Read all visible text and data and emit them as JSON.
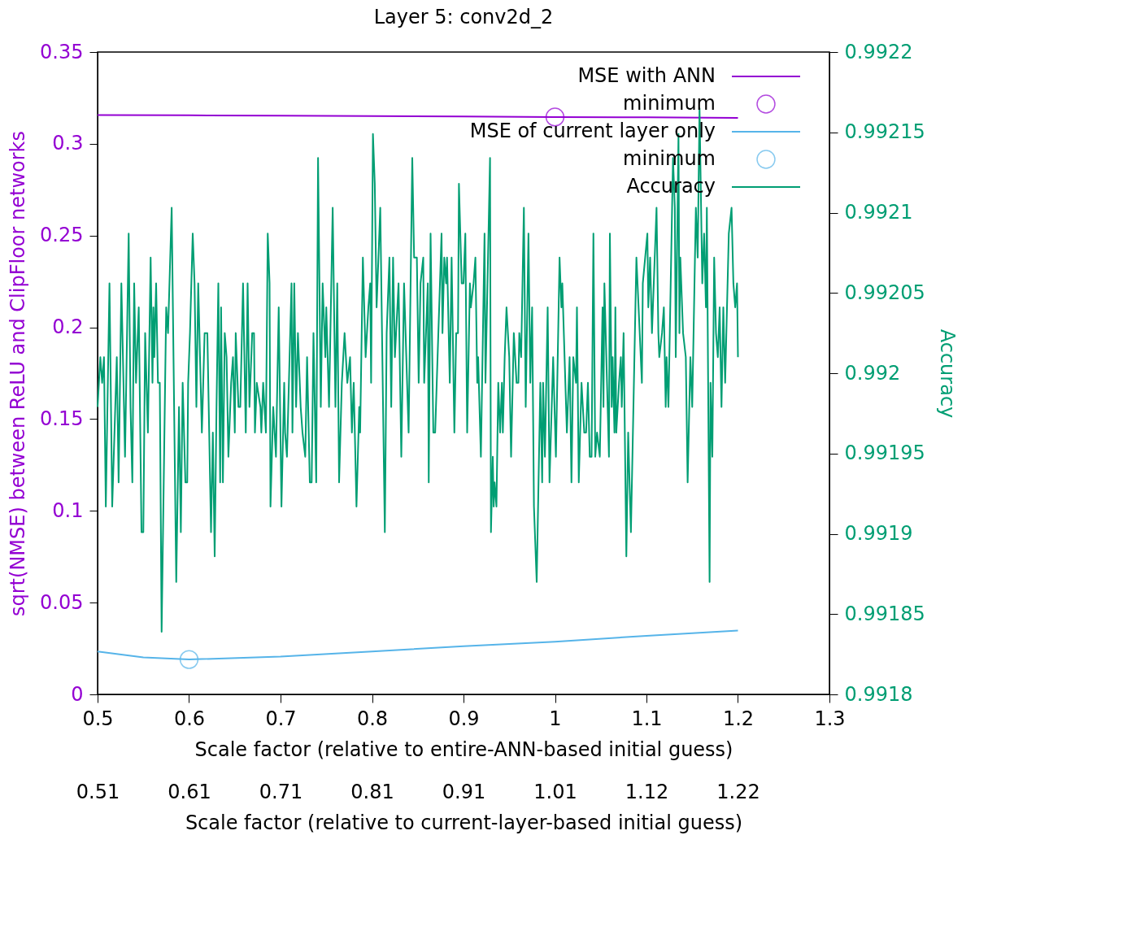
{
  "chart_data": {
    "type": "line",
    "title": "Layer 5: conv2d_2",
    "xlabel": "Scale factor (relative to entire-ANN-based initial guess)",
    "x2label": "Scale factor (relative to current-layer-based initial guess)",
    "ylabel": "sqrt(NMSE) between ReLU and ClipFloor networks",
    "y2label": "Accuracy",
    "xlim": [
      0.5,
      1.3
    ],
    "xticks": [
      0.5,
      0.6,
      0.7,
      0.8,
      0.9,
      1,
      1.1,
      1.2,
      1.3
    ],
    "x2lim": [
      0.5075,
      1.3195
    ],
    "x2ticks": [
      {
        "value": 0.5075,
        "label": "0.51"
      },
      {
        "value": 0.609,
        "label": "0.61"
      },
      {
        "value": 0.7105,
        "label": "0.71"
      },
      {
        "value": 0.812,
        "label": "0.81"
      },
      {
        "value": 0.9135,
        "label": "0.91"
      },
      {
        "value": 1.015,
        "label": "1.01"
      },
      {
        "value": 1.1165,
        "label": "1.12"
      },
      {
        "value": 1.218,
        "label": "1.22"
      }
    ],
    "ylim": [
      0,
      0.35
    ],
    "yticks": [
      0,
      0.05,
      0.1,
      0.15,
      0.2,
      0.25,
      0.3,
      0.35
    ],
    "y2lim": [
      0.9918,
      0.9922
    ],
    "y2ticks": [
      0.9918,
      0.99185,
      0.9919,
      0.99195,
      0.992,
      0.99205,
      0.9921,
      0.99215,
      0.9922
    ],
    "legend": "top right",
    "grid": false,
    "series": [
      {
        "name": "MSE with ANN",
        "color": "#9400d3",
        "x": [
          0.5,
          0.6,
          0.7,
          0.8,
          0.9,
          1.0,
          1.1,
          1.2
        ],
        "values": [
          0.3157,
          0.3155,
          0.3153,
          0.3151,
          0.3149,
          0.3146,
          0.3144,
          0.3141
        ]
      },
      {
        "name": "minimum",
        "type": "scatter",
        "marker": "circle",
        "color": "#9400d3",
        "x": [
          1.0
        ],
        "values": [
          0.3146
        ]
      },
      {
        "name": "MSE of current layer only",
        "color": "#56b4e9",
        "x": [
          0.5,
          0.55,
          0.6,
          0.7,
          0.8,
          0.9,
          1.0,
          1.1,
          1.2
        ],
        "values": [
          0.0234,
          0.0202,
          0.019,
          0.0206,
          0.0234,
          0.0263,
          0.0287,
          0.0319,
          0.0348
        ]
      },
      {
        "name": "minimum",
        "type": "scatter",
        "marker": "circle",
        "color": "#56b4e9",
        "x": [
          0.6
        ],
        "values": [
          0.019
        ]
      },
      {
        "name": "Accuracy",
        "axis": "y2",
        "color": "#009e73",
        "x": [
          0.5,
          0.503,
          0.505,
          0.507,
          0.509,
          0.513,
          0.516,
          0.521,
          0.523,
          0.526,
          0.53,
          0.534,
          0.536,
          0.538,
          0.54,
          0.542,
          0.545,
          0.548,
          0.55,
          0.552,
          0.555,
          0.558,
          0.56,
          0.561,
          0.562,
          0.564,
          0.566,
          0.568,
          0.57,
          0.575,
          0.577,
          0.581,
          0.586,
          0.589,
          0.591,
          0.593,
          0.596,
          0.598,
          0.599,
          0.601,
          0.604,
          0.606,
          0.608,
          0.61,
          0.614,
          0.617,
          0.62,
          0.622,
          0.624,
          0.626,
          0.628,
          0.63,
          0.632,
          0.634,
          0.635,
          0.637,
          0.639,
          0.641,
          0.643,
          0.646,
          0.648,
          0.65,
          0.651,
          0.654,
          0.656,
          0.659,
          0.662,
          0.664,
          0.666,
          0.669,
          0.671,
          0.672,
          0.674,
          0.678,
          0.679,
          0.681,
          0.684,
          0.686,
          0.688,
          0.689,
          0.692,
          0.695,
          0.698,
          0.701,
          0.704,
          0.705,
          0.707,
          0.712,
          0.713,
          0.715,
          0.717,
          0.719,
          0.722,
          0.724,
          0.727,
          0.729,
          0.732,
          0.734,
          0.736,
          0.739,
          0.741,
          0.744,
          0.746,
          0.749,
          0.75,
          0.753,
          0.757,
          0.76,
          0.762,
          0.764,
          0.767,
          0.77,
          0.773,
          0.776,
          0.778,
          0.78,
          0.783,
          0.786,
          0.787,
          0.79,
          0.793,
          0.796,
          0.798,
          0.799,
          0.801,
          0.803,
          0.805,
          0.809,
          0.814,
          0.816,
          0.819,
          0.821,
          0.823,
          0.825,
          0.829,
          0.832,
          0.835,
          0.84,
          0.844,
          0.846,
          0.849,
          0.851,
          0.853,
          0.856,
          0.857,
          0.861,
          0.862,
          0.864,
          0.867,
          0.869,
          0.876,
          0.877,
          0.879,
          0.881,
          0.882,
          0.885,
          0.887,
          0.89,
          0.892,
          0.894,
          0.895,
          0.898,
          0.9,
          0.902,
          0.904,
          0.907,
          0.908,
          0.911,
          0.913,
          0.915,
          0.916,
          0.919,
          0.923,
          0.924,
          0.929,
          0.93,
          0.932,
          0.933,
          0.934,
          0.936,
          0.938,
          0.94,
          0.942,
          0.943,
          0.945,
          0.947,
          0.95,
          0.952,
          0.955,
          0.958,
          0.96,
          0.961,
          0.963,
          0.966,
          0.968,
          0.971,
          0.973,
          0.975,
          0.977,
          0.98,
          0.984,
          0.986,
          0.987,
          0.989,
          0.992,
          0.994,
          0.998,
          1.001,
          1.005,
          1.007,
          1.008,
          1.013,
          1.014,
          1.016,
          1.018,
          1.02,
          1.023,
          1.024,
          1.026,
          1.029,
          1.032,
          1.034,
          1.036,
          1.038,
          1.04,
          1.042,
          1.044,
          1.046,
          1.049,
          1.052,
          1.053,
          1.054,
          1.059,
          1.06,
          1.062,
          1.063,
          1.065,
          1.066,
          1.067,
          1.07,
          1.072,
          1.073,
          1.075,
          1.078,
          1.08,
          1.083,
          1.089,
          1.095,
          1.096,
          1.101,
          1.102,
          1.104,
          1.106,
          1.111,
          1.113,
          1.114,
          1.117,
          1.119,
          1.121,
          1.122,
          1.124,
          1.129,
          1.131,
          1.132,
          1.135,
          1.136,
          1.137,
          1.14,
          1.143,
          1.145,
          1.148,
          1.15,
          1.153,
          1.154,
          1.156,
          1.158,
          1.161,
          1.163,
          1.165,
          1.166,
          1.169,
          1.17,
          1.172,
          1.174,
          1.176,
          1.178,
          1.18,
          1.182,
          1.184,
          1.186,
          1.19,
          1.193,
          1.195,
          1.197,
          1.199,
          1.2
        ],
        "values": [
          0.991979,
          0.99201,
          0.991994,
          0.99201,
          0.991917,
          0.992056,
          0.991917,
          0.99201,
          0.991932,
          0.992056,
          0.991948,
          0.992087,
          0.991979,
          0.991932,
          0.992056,
          0.991994,
          0.992041,
          0.991901,
          0.991901,
          0.992025,
          0.991963,
          0.992072,
          0.991994,
          0.992041,
          0.99201,
          0.992056,
          0.991994,
          0.991994,
          0.991839,
          0.992041,
          0.992025,
          0.992103,
          0.99187,
          0.991979,
          0.991901,
          0.991994,
          0.991932,
          0.991932,
          0.991994,
          0.992025,
          0.992087,
          0.992056,
          0.991979,
          0.992056,
          0.991963,
          0.992025,
          0.992025,
          0.991963,
          0.991901,
          0.991963,
          0.991886,
          0.991979,
          0.992056,
          0.991932,
          0.992041,
          0.991932,
          0.992025,
          0.99201,
          0.991948,
          0.991994,
          0.99201,
          0.991963,
          0.992025,
          0.991979,
          0.991979,
          0.992056,
          0.991963,
          0.992056,
          0.991979,
          0.992025,
          0.992025,
          0.991963,
          0.991994,
          0.991979,
          0.991963,
          0.991994,
          0.991963,
          0.992087,
          0.992056,
          0.991917,
          0.991979,
          0.991948,
          0.992041,
          0.991917,
          0.991994,
          0.991963,
          0.991948,
          0.992056,
          0.991963,
          0.992056,
          0.991979,
          0.992025,
          0.991979,
          0.991963,
          0.991948,
          0.99201,
          0.991932,
          0.991932,
          0.992025,
          0.991932,
          0.992134,
          0.991979,
          0.992056,
          0.99201,
          0.992041,
          0.991979,
          0.992103,
          0.991979,
          0.992056,
          0.991932,
          0.991994,
          0.992025,
          0.991994,
          0.99201,
          0.991963,
          0.991994,
          0.991917,
          0.991979,
          0.991963,
          0.992072,
          0.99201,
          0.992041,
          0.992056,
          0.991994,
          0.992149,
          0.992118,
          0.992041,
          0.992103,
          0.991901,
          0.992025,
          0.992072,
          0.991979,
          0.992072,
          0.99201,
          0.992056,
          0.991948,
          0.992056,
          0.991963,
          0.992134,
          0.992072,
          0.992072,
          0.991994,
          0.992056,
          0.992072,
          0.991994,
          0.992056,
          0.991932,
          0.992087,
          0.991963,
          0.991963,
          0.992087,
          0.992025,
          0.992072,
          0.992056,
          0.992072,
          0.991994,
          0.992072,
          0.991963,
          0.992025,
          0.992025,
          0.992118,
          0.992056,
          0.992056,
          0.992087,
          0.991963,
          0.992056,
          0.992041,
          0.992056,
          0.992072,
          0.991994,
          0.99201,
          0.991948,
          0.992087,
          0.991994,
          0.992134,
          0.991901,
          0.991948,
          0.991917,
          0.991932,
          0.991917,
          0.991994,
          0.991963,
          0.991994,
          0.991963,
          0.99201,
          0.992041,
          0.99201,
          0.991948,
          0.992025,
          0.991994,
          0.991994,
          0.992025,
          0.99201,
          0.992103,
          0.991979,
          0.992087,
          0.991994,
          0.992041,
          0.991917,
          0.99187,
          0.991994,
          0.991932,
          0.991994,
          0.991948,
          0.992041,
          0.991932,
          0.99201,
          0.991948,
          0.992072,
          0.992041,
          0.992056,
          0.991963,
          0.991979,
          0.99201,
          0.991932,
          0.99201,
          0.991994,
          0.992041,
          0.991932,
          0.991994,
          0.991963,
          0.991963,
          0.991994,
          0.991948,
          0.991948,
          0.992087,
          0.991948,
          0.991963,
          0.991948,
          0.992041,
          0.991979,
          0.992056,
          0.991948,
          0.992087,
          0.991979,
          0.99201,
          0.991963,
          0.992041,
          0.991963,
          0.991994,
          0.99201,
          0.991979,
          0.992025,
          0.991886,
          0.991963,
          0.991901,
          0.992072,
          0.991994,
          0.992056,
          0.992087,
          0.992041,
          0.992072,
          0.992025,
          0.992103,
          0.992025,
          0.99201,
          0.992025,
          0.992041,
          0.991979,
          0.99201,
          0.991979,
          0.992134,
          0.992103,
          0.99201,
          0.992149,
          0.992025,
          0.992072,
          0.992025,
          0.99201,
          0.991932,
          0.99201,
          0.991979,
          0.992072,
          0.992103,
          0.992072,
          0.992165,
          0.992056,
          0.992087,
          0.992041,
          0.992103,
          0.99187,
          0.991994,
          0.991948,
          0.992072,
          0.992025,
          0.99201,
          0.992041,
          0.991979,
          0.992041,
          0.991994,
          0.992087,
          0.992103,
          0.992056,
          0.992041,
          0.992056,
          0.99201
        ]
      }
    ]
  }
}
